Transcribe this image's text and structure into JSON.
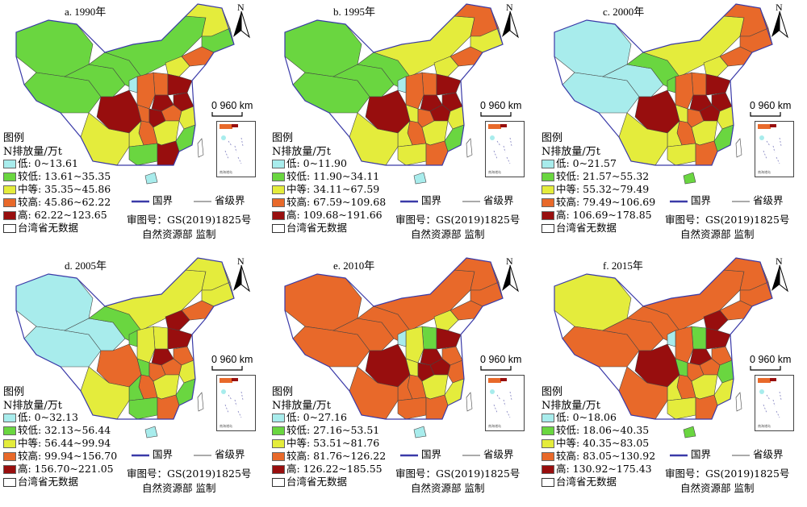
{
  "panels": [
    {
      "title": "a. 1990年",
      "legend": [
        "低: 0~13.61",
        "较低: 13.61~35.35",
        "中等: 35.35~45.86",
        "较高: 45.86~62.22",
        "高: 62.22~123.65",
        "台湾省无数据"
      ]
    },
    {
      "title": "b. 1995年",
      "legend": [
        "低: 0~11.90",
        "较低: 11.90~34.11",
        "中等: 34.11~67.59",
        "较高: 67.59~109.68",
        "高: 109.68~191.66",
        "台湾省无数据"
      ]
    },
    {
      "title": "c. 2000年",
      "legend": [
        "低: 0~21.57",
        "较低: 21.57~55.32",
        "中等: 55.32~79.49",
        "较高: 79.49~106.69",
        "高: 106.69~178.85",
        "台湾省无数据"
      ]
    },
    {
      "title": "d. 2005年",
      "legend": [
        "低: 0~32.13",
        "较低: 32.13~56.44",
        "中等: 56.44~99.94",
        "较高: 99.94~156.70",
        "高: 156.70~221.05",
        "台湾省无数据"
      ]
    },
    {
      "title": "e. 2010年",
      "legend": [
        "低: 0~27.16",
        "较低: 27.16~53.51",
        "中等: 53.51~81.76",
        "较高: 81.76~126.22",
        "高: 126.22~185.55",
        "台湾省无数据"
      ]
    },
    {
      "title": "f. 2015年",
      "legend": [
        "低: 0~18.06",
        "较低: 18.06~40.35",
        "中等: 40.35~83.05",
        "较高: 83.05~130.92",
        "高: 130.92~175.43",
        "台湾省无数据"
      ]
    }
  ],
  "common": {
    "legend_title": "图例",
    "legend_unit": "N排放量/万t",
    "national_border": "国界",
    "provincial_border": "省级界",
    "review_number": "审图号：GS(2019)1825号",
    "supervisor": "自然资源部 监制",
    "north": "N",
    "scale_zero": "0",
    "scale_value": "960 km"
  },
  "colors": {
    "low": "#a8ecec",
    "lower": "#6ad640",
    "medium": "#e4ec3c",
    "higher": "#e8692a",
    "high": "#980e0e",
    "sea": "#ffffff"
  }
}
